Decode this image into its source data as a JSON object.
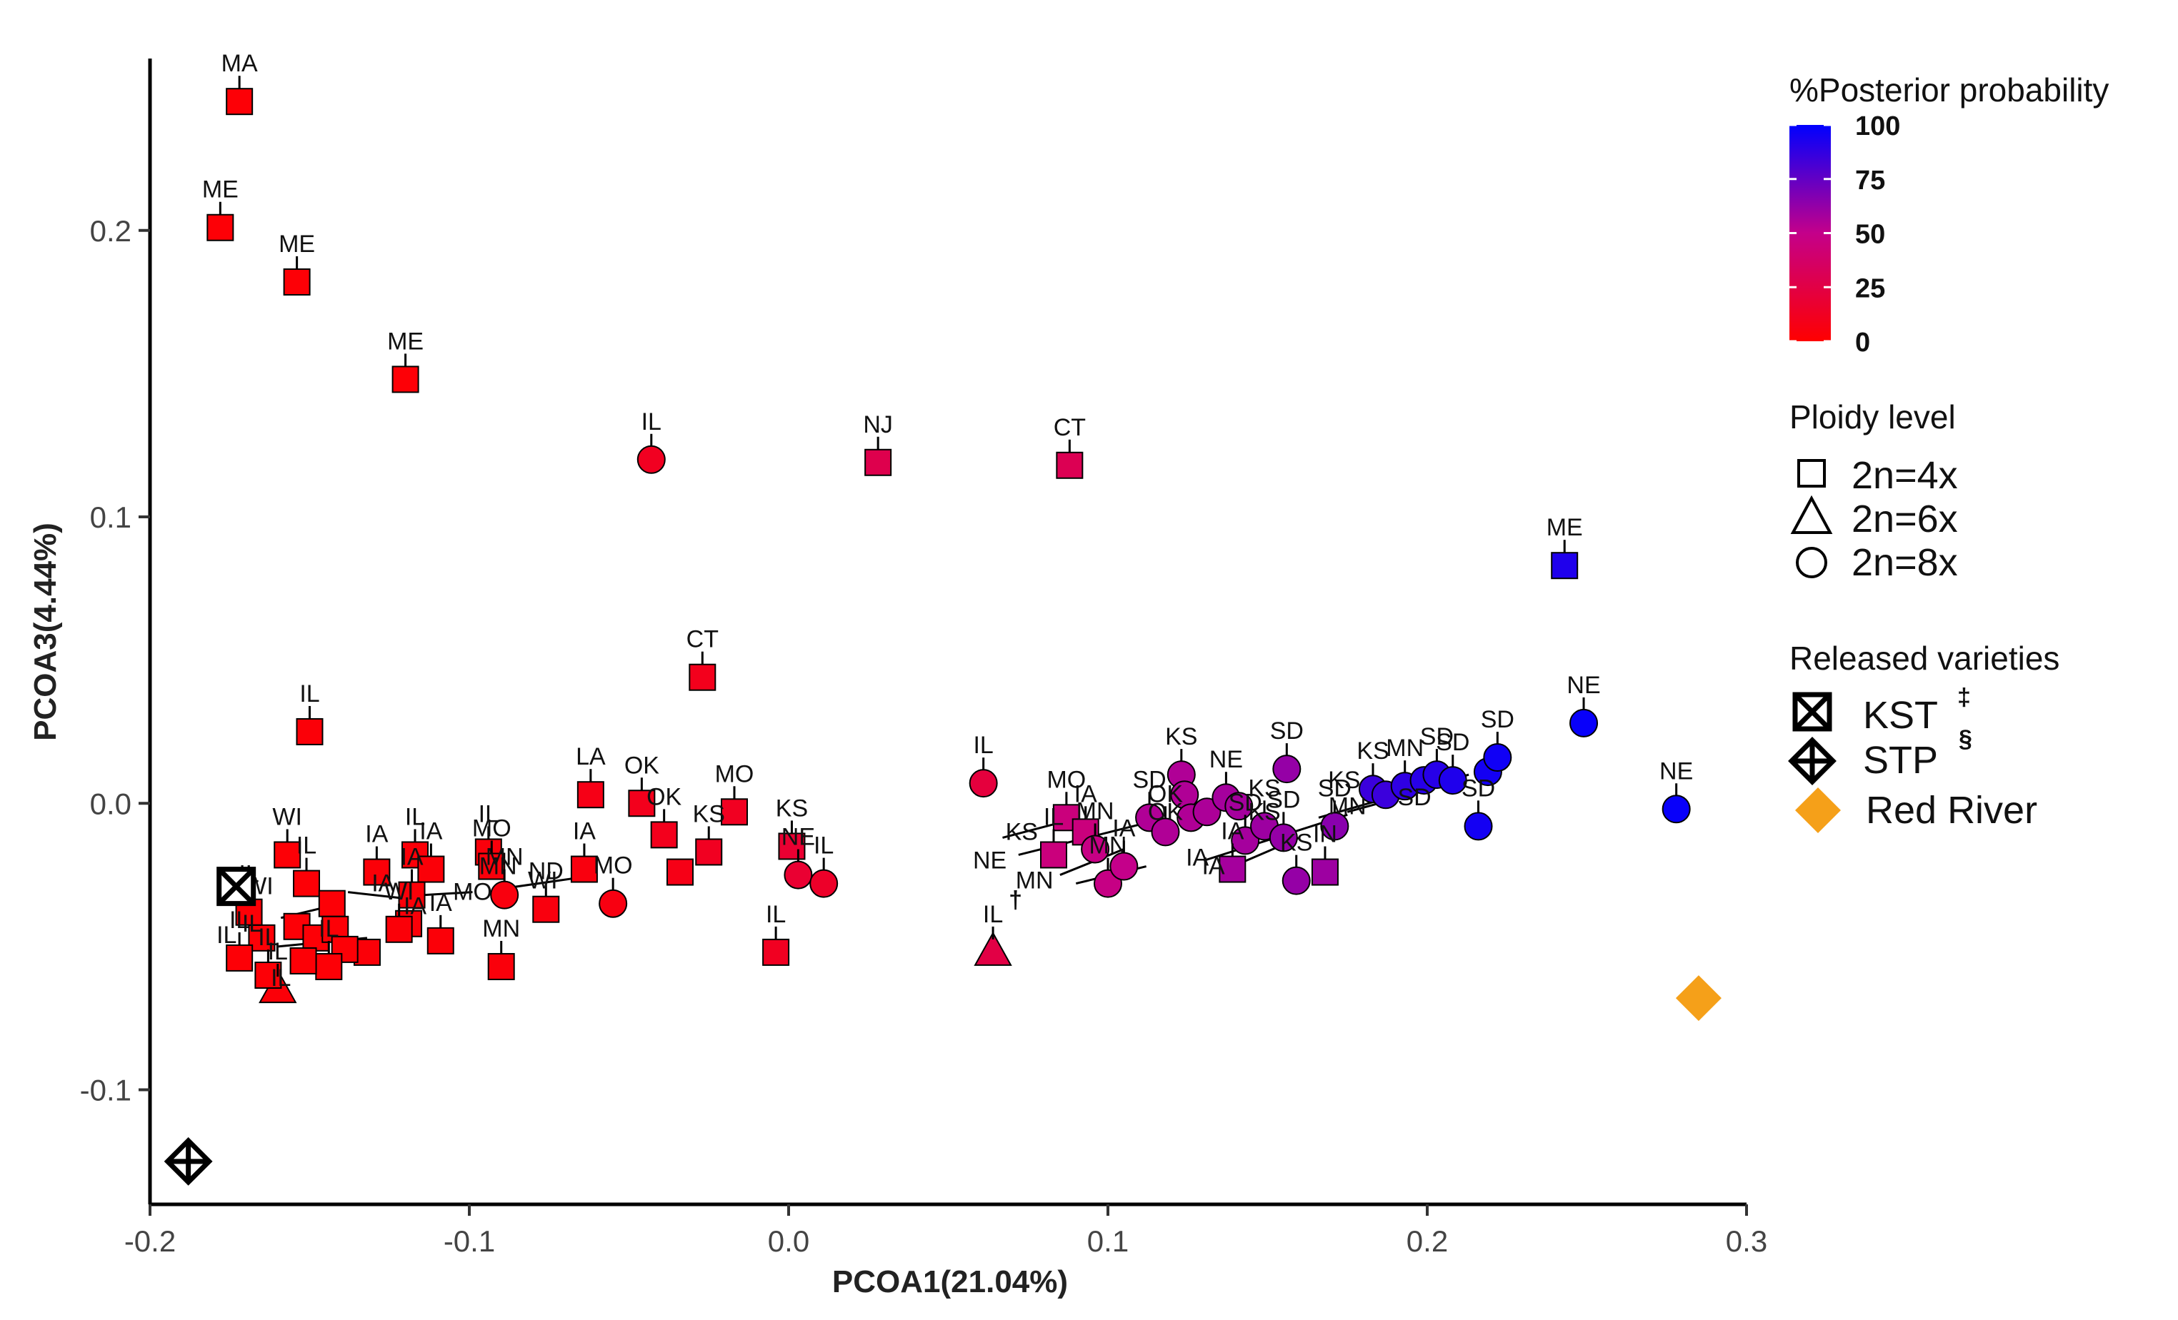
{
  "chart_data": {
    "type": "scatter",
    "xlabel": "PCOA1(21.04%)",
    "ylabel": "PCOA3(4.44%)",
    "xlim": [
      -0.2,
      0.3
    ],
    "ylim": [
      -0.14,
      0.26
    ],
    "x_ticks": [
      -0.2,
      -0.1,
      0.0,
      0.1,
      0.2,
      0.3
    ],
    "x_tick_labels": [
      "-0.2",
      "-0.1",
      "0.0",
      "0.1",
      "0.2",
      "0.3"
    ],
    "y_ticks": [
      -0.1,
      0.0,
      0.1,
      0.2
    ],
    "y_tick_labels": [
      "-0.1",
      "0.0",
      "0.1",
      "0.2"
    ],
    "grid": false,
    "legend": {
      "color_title": "%Posterior probability",
      "color_ticks": [
        100,
        75,
        50,
        25,
        0
      ],
      "color_tick_labels": [
        "100",
        "75",
        "50",
        "25",
        "0"
      ],
      "color_low": "#ff0000",
      "color_high": "#0000ff",
      "ploidy_title": "Ploidy level",
      "ploidy_items": [
        {
          "shape": "square",
          "label": "2n=4x"
        },
        {
          "shape": "triangle",
          "label": "2n=6x"
        },
        {
          "shape": "circle",
          "label": "2n=8x"
        }
      ],
      "varieties_title": "Released varieties",
      "variety_items": [
        {
          "shape": "boxx",
          "label": "KST",
          "note": "‡"
        },
        {
          "shape": "diamondcross",
          "label": "STP",
          "note": "§"
        },
        {
          "shape": "diamond",
          "label": "Red River",
          "color": "#f5a019"
        }
      ]
    },
    "points": [
      {
        "x": -0.172,
        "y": 0.245,
        "label": "MA",
        "prob": 2,
        "shape": "square"
      },
      {
        "x": -0.178,
        "y": 0.201,
        "label": "ME",
        "prob": 2,
        "shape": "square"
      },
      {
        "x": -0.154,
        "y": 0.182,
        "label": "ME",
        "prob": 2,
        "shape": "square"
      },
      {
        "x": -0.12,
        "y": 0.148,
        "label": "ME",
        "prob": 2,
        "shape": "square"
      },
      {
        "x": -0.043,
        "y": 0.12,
        "label": "IL",
        "prob": 12,
        "shape": "circle"
      },
      {
        "x": 0.028,
        "y": 0.119,
        "label": "NJ",
        "prob": 28,
        "shape": "square"
      },
      {
        "x": 0.088,
        "y": 0.118,
        "label": "CT",
        "prob": 30,
        "shape": "square"
      },
      {
        "x": -0.027,
        "y": 0.044,
        "label": "CT",
        "prob": 10,
        "shape": "square"
      },
      {
        "x": -0.15,
        "y": 0.025,
        "label": "IL",
        "prob": 3,
        "shape": "square"
      },
      {
        "x": 0.243,
        "y": 0.083,
        "label": "ME",
        "prob": 92,
        "shape": "square"
      },
      {
        "x": 0.249,
        "y": 0.028,
        "label": "NE",
        "prob": 98,
        "shape": "circle"
      },
      {
        "x": 0.278,
        "y": -0.002,
        "label": "NE",
        "prob": 98,
        "shape": "circle"
      },
      {
        "x": -0.062,
        "y": 0.003,
        "label": "LA",
        "prob": 8,
        "shape": "square"
      },
      {
        "x": -0.046,
        "y": 0.0,
        "label": "OK",
        "prob": 10,
        "shape": "square"
      },
      {
        "x": -0.039,
        "y": -0.011,
        "label": "OK",
        "prob": 10,
        "shape": "square"
      },
      {
        "x": -0.017,
        "y": -0.003,
        "label": "MO",
        "prob": 12,
        "shape": "square"
      },
      {
        "x": -0.025,
        "y": -0.017,
        "label": "KS",
        "prob": 12,
        "shape": "square"
      },
      {
        "x": 0.001,
        "y": -0.015,
        "label": "KS",
        "prob": 18,
        "shape": "square"
      },
      {
        "x": 0.003,
        "y": -0.025,
        "label": "NE",
        "prob": 18,
        "shape": "circle"
      },
      {
        "x": 0.011,
        "y": -0.028,
        "label": "IL",
        "prob": 15,
        "shape": "circle"
      },
      {
        "x": -0.055,
        "y": -0.035,
        "label": "MO",
        "prob": 6,
        "shape": "circle"
      },
      {
        "x": -0.034,
        "y": -0.024,
        "label": "",
        "prob": 8,
        "shape": "square"
      },
      {
        "x": -0.064,
        "y": -0.023,
        "label": "IA",
        "prob": 5,
        "shape": "square"
      },
      {
        "x": -0.076,
        "y": -0.037,
        "label": "ND",
        "prob": 5,
        "shape": "square"
      },
      {
        "x": -0.089,
        "y": -0.032,
        "label": "MN",
        "prob": 5,
        "shape": "circle"
      },
      {
        "x": -0.09,
        "y": -0.057,
        "label": "MN",
        "prob": 4,
        "shape": "square"
      },
      {
        "x": -0.004,
        "y": -0.052,
        "label": "IL",
        "prob": 12,
        "shape": "square"
      },
      {
        "x": -0.094,
        "y": -0.017,
        "label": "IL",
        "prob": 4,
        "shape": "square"
      },
      {
        "x": -0.093,
        "y": -0.022,
        "label": "MO",
        "prob": 4,
        "shape": "square"
      },
      {
        "x": -0.117,
        "y": -0.018,
        "label": "IL",
        "prob": 3,
        "shape": "square"
      },
      {
        "x": -0.112,
        "y": -0.023,
        "label": "IA",
        "prob": 3,
        "shape": "square"
      },
      {
        "x": -0.129,
        "y": -0.024,
        "label": "IA",
        "prob": 3,
        "shape": "square"
      },
      {
        "x": -0.118,
        "y": -0.032,
        "label": "IA",
        "prob": 3,
        "shape": "square"
      },
      {
        "x": -0.119,
        "y": -0.042,
        "label": "",
        "prob": 3,
        "shape": "square"
      },
      {
        "x": -0.109,
        "y": -0.048,
        "label": "IA",
        "prob": 3,
        "shape": "square"
      },
      {
        "x": -0.122,
        "y": -0.044,
        "label": "WI",
        "prob": 3,
        "shape": "square"
      },
      {
        "x": -0.132,
        "y": -0.052,
        "label": "",
        "prob": 3,
        "shape": "square"
      },
      {
        "x": -0.157,
        "y": -0.018,
        "label": "WI",
        "prob": 2,
        "shape": "square"
      },
      {
        "x": -0.151,
        "y": -0.028,
        "label": "IL",
        "prob": 2,
        "shape": "square"
      },
      {
        "x": -0.143,
        "y": -0.035,
        "label": "",
        "prob": 2,
        "shape": "square"
      },
      {
        "x": -0.154,
        "y": -0.043,
        "label": "",
        "prob": 2,
        "shape": "square"
      },
      {
        "x": -0.148,
        "y": -0.047,
        "label": "",
        "prob": 2,
        "shape": "square"
      },
      {
        "x": -0.142,
        "y": -0.044,
        "label": "",
        "prob": 2,
        "shape": "square"
      },
      {
        "x": -0.139,
        "y": -0.051,
        "label": "",
        "prob": 2,
        "shape": "square"
      },
      {
        "x": -0.144,
        "y": -0.057,
        "label": "IL",
        "prob": 2,
        "shape": "square"
      },
      {
        "x": -0.152,
        "y": -0.055,
        "label": "",
        "prob": 2,
        "shape": "square"
      },
      {
        "x": -0.165,
        "y": -0.047,
        "label": "",
        "prob": 2,
        "shape": "square"
      },
      {
        "x": -0.169,
        "y": -0.038,
        "label": "IL",
        "prob": 2,
        "shape": "square"
      },
      {
        "x": -0.172,
        "y": -0.054,
        "label": "IL",
        "prob": 2,
        "shape": "square"
      },
      {
        "x": -0.16,
        "y": -0.065,
        "label": "IL",
        "prob": 3,
        "shape": "triangle"
      },
      {
        "x": -0.163,
        "y": -0.06,
        "label": "IL",
        "prob": 2,
        "shape": "square"
      },
      {
        "x": 0.061,
        "y": 0.007,
        "label": "IL",
        "prob": 22,
        "shape": "circle"
      },
      {
        "x": 0.064,
        "y": -0.052,
        "label": "IL",
        "note": "†",
        "prob": 25,
        "shape": "triangle"
      },
      {
        "x": 0.087,
        "y": -0.005,
        "label": "MO",
        "prob": 45,
        "shape": "square"
      },
      {
        "x": 0.093,
        "y": -0.01,
        "label": "IA",
        "prob": 45,
        "shape": "square"
      },
      {
        "x": 0.083,
        "y": -0.018,
        "label": "IL",
        "prob": 45,
        "shape": "square"
      },
      {
        "x": 0.096,
        "y": -0.016,
        "label": "MN",
        "prob": 48,
        "shape": "circle"
      },
      {
        "x": 0.1,
        "y": -0.028,
        "label": "MN",
        "prob": 48,
        "shape": "circle"
      },
      {
        "x": 0.105,
        "y": -0.022,
        "label": "IA",
        "prob": 50,
        "shape": "circle"
      },
      {
        "x": 0.113,
        "y": -0.005,
        "label": "SD",
        "prob": 55,
        "shape": "circle"
      },
      {
        "x": 0.118,
        "y": -0.01,
        "label": "OK",
        "prob": 55,
        "shape": "circle"
      },
      {
        "x": 0.123,
        "y": 0.01,
        "label": "KS",
        "prob": 55,
        "shape": "circle"
      },
      {
        "x": 0.124,
        "y": 0.003,
        "label": "",
        "prob": 55,
        "shape": "circle"
      },
      {
        "x": 0.126,
        "y": -0.005,
        "label": "",
        "prob": 55,
        "shape": "circle"
      },
      {
        "x": 0.131,
        "y": -0.003,
        "label": "",
        "prob": 56,
        "shape": "circle"
      },
      {
        "x": 0.137,
        "y": 0.002,
        "label": "NE",
        "prob": 58,
        "shape": "circle"
      },
      {
        "x": 0.141,
        "y": -0.001,
        "label": "",
        "prob": 58,
        "shape": "circle"
      },
      {
        "x": 0.139,
        "y": -0.023,
        "label": "IA",
        "prob": 58,
        "shape": "square"
      },
      {
        "x": 0.143,
        "y": -0.013,
        "label": "SD",
        "prob": 58,
        "shape": "circle"
      },
      {
        "x": 0.149,
        "y": -0.008,
        "label": "KS",
        "prob": 60,
        "shape": "circle"
      },
      {
        "x": 0.156,
        "y": 0.012,
        "label": "SD",
        "prob": 62,
        "shape": "circle"
      },
      {
        "x": 0.155,
        "y": -0.012,
        "label": "SD",
        "prob": 62,
        "shape": "circle"
      },
      {
        "x": 0.159,
        "y": -0.027,
        "label": "KS",
        "prob": 62,
        "shape": "circle"
      },
      {
        "x": 0.168,
        "y": -0.024,
        "label": "IN",
        "prob": 60,
        "shape": "square"
      },
      {
        "x": 0.171,
        "y": -0.008,
        "label": "SD",
        "prob": 65,
        "shape": "circle"
      },
      {
        "x": 0.183,
        "y": 0.005,
        "label": "KS",
        "prob": 85,
        "shape": "circle"
      },
      {
        "x": 0.187,
        "y": 0.003,
        "label": "",
        "prob": 85,
        "shape": "circle"
      },
      {
        "x": 0.193,
        "y": 0.006,
        "label": "MN",
        "prob": 88,
        "shape": "circle"
      },
      {
        "x": 0.199,
        "y": 0.008,
        "label": "",
        "prob": 90,
        "shape": "circle"
      },
      {
        "x": 0.203,
        "y": 0.01,
        "label": "SD",
        "prob": 90,
        "shape": "circle"
      },
      {
        "x": 0.208,
        "y": 0.008,
        "label": "SD",
        "prob": 92,
        "shape": "circle"
      },
      {
        "x": 0.216,
        "y": -0.008,
        "label": "SD",
        "prob": 95,
        "shape": "circle"
      },
      {
        "x": 0.219,
        "y": 0.011,
        "label": "",
        "prob": 95,
        "shape": "circle"
      },
      {
        "x": 0.222,
        "y": 0.016,
        "label": "SD",
        "prob": 96,
        "shape": "circle"
      }
    ],
    "extra_labels": [
      {
        "x": 0.073,
        "y": -0.01,
        "label": "KS"
      },
      {
        "x": 0.063,
        "y": -0.02,
        "label": "NE"
      },
      {
        "x": 0.077,
        "y": -0.027,
        "label": "MN"
      },
      {
        "x": 0.118,
        "y": -0.003,
        "label": "OK"
      },
      {
        "x": 0.128,
        "y": -0.019,
        "label": "IA"
      },
      {
        "x": 0.133,
        "y": -0.022,
        "label": "IA"
      },
      {
        "x": 0.149,
        "y": -0.003,
        "label": "KS"
      },
      {
        "x": 0.174,
        "y": 0.008,
        "label": "KS"
      },
      {
        "x": 0.175,
        "y": -0.001,
        "label": "MN"
      },
      {
        "x": 0.196,
        "y": 0.002,
        "label": "SD"
      },
      {
        "x": -0.127,
        "y": -0.028,
        "label": "IA"
      },
      {
        "x": -0.099,
        "y": -0.031,
        "label": "MO"
      },
      {
        "x": -0.077,
        "y": -0.027,
        "label": "WI"
      },
      {
        "x": -0.091,
        "y": -0.022,
        "label": "MN"
      },
      {
        "x": -0.117,
        "y": -0.036,
        "label": "IA"
      },
      {
        "x": -0.168,
        "y": -0.042,
        "label": "IL"
      },
      {
        "x": -0.176,
        "y": -0.046,
        "label": "IL"
      },
      {
        "x": -0.166,
        "y": -0.029,
        "label": "WI"
      },
      {
        "x": -0.159,
        "y": -0.061,
        "label": "IL"
      }
    ],
    "varieties": [
      {
        "x": -0.173,
        "y": -0.029,
        "name": "KST",
        "shape": "boxx",
        "color": "#000000"
      },
      {
        "x": -0.188,
        "y": -0.125,
        "name": "STP",
        "shape": "diamondcross",
        "color": "#000000"
      },
      {
        "x": 0.285,
        "y": -0.068,
        "name": "Red River",
        "shape": "diamond",
        "color": "#f5a019"
      }
    ],
    "connector_lines": [
      [
        [
          -0.159,
          -0.04
        ],
        [
          -0.144,
          -0.036
        ]
      ],
      [
        [
          -0.138,
          -0.031
        ],
        [
          -0.122,
          -0.033
        ]
      ],
      [
        [
          -0.114,
          -0.032
        ],
        [
          -0.099,
          -0.031
        ]
      ],
      [
        [
          -0.091,
          -0.03
        ],
        [
          -0.066,
          -0.026
        ]
      ],
      [
        [
          -0.16,
          -0.05
        ],
        [
          -0.132,
          -0.047
        ]
      ],
      [
        [
          -0.156,
          -0.059
        ],
        [
          -0.14,
          -0.053
        ]
      ],
      [
        [
          0.067,
          -0.012
        ],
        [
          0.091,
          -0.005
        ]
      ],
      [
        [
          0.072,
          -0.018
        ],
        [
          0.115,
          -0.006
        ]
      ],
      [
        [
          0.085,
          -0.025
        ],
        [
          0.105,
          -0.016
        ]
      ],
      [
        [
          0.09,
          -0.028
        ],
        [
          0.112,
          -0.022
        ]
      ],
      [
        [
          0.13,
          -0.02
        ],
        [
          0.175,
          -0.004
        ]
      ],
      [
        [
          0.135,
          -0.024
        ],
        [
          0.16,
          -0.012
        ]
      ],
      [
        [
          0.166,
          -0.005
        ],
        [
          0.213,
          0.01
        ]
      ],
      [
        [
          0.175,
          -0.003
        ],
        [
          0.198,
          0.004
        ]
      ]
    ]
  }
}
